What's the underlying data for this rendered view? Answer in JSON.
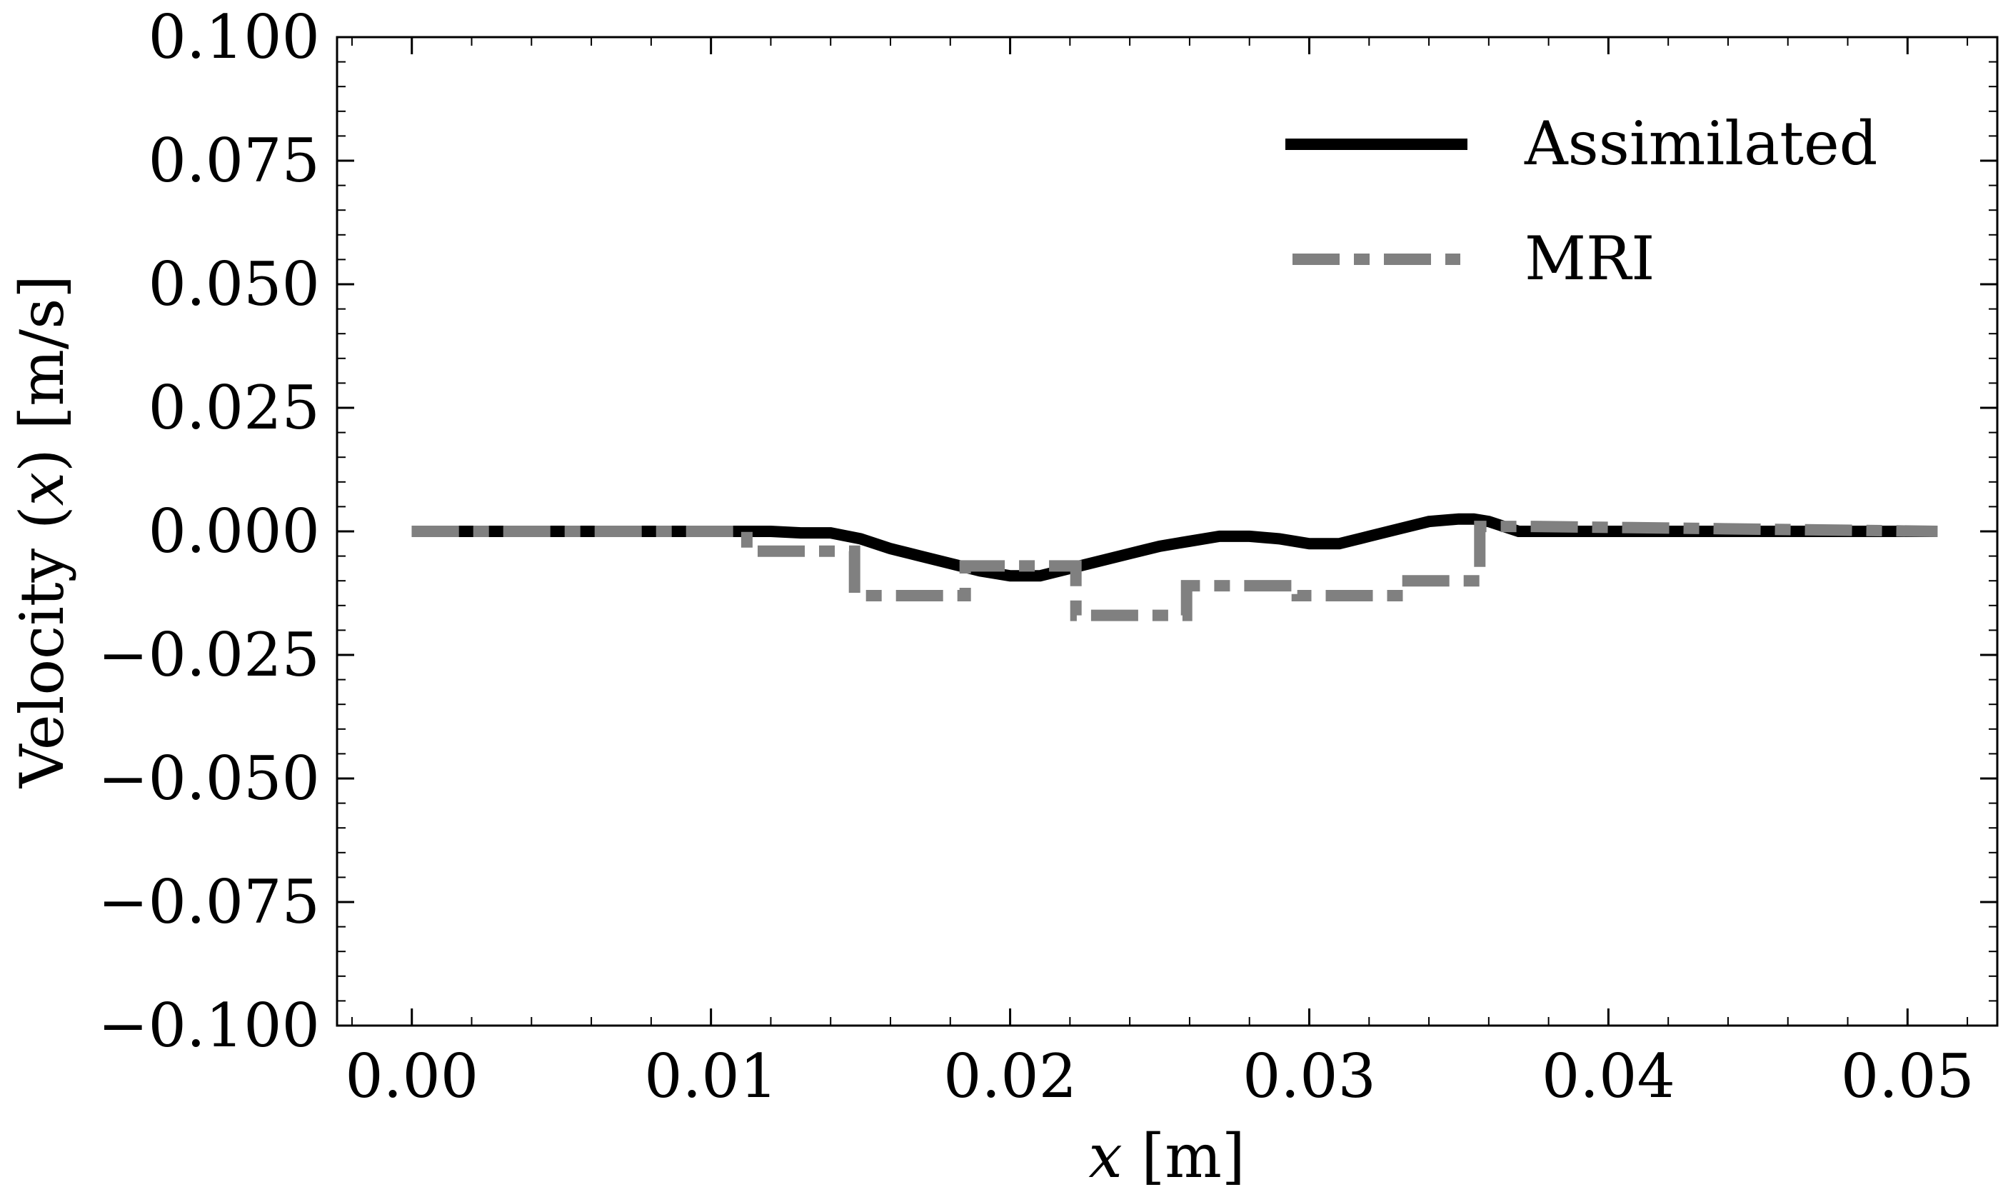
{
  "chart_data": {
    "type": "line",
    "title": "",
    "xlabel_italic": "x",
    "xlabel_rest": " [m]",
    "ylabel_pre": "Velocity (",
    "ylabel_italic": "x",
    "ylabel_post": ") [m/s]",
    "xlim": [
      -0.0025,
      0.053
    ],
    "ylim": [
      -0.1,
      0.1
    ],
    "xticks": [
      0.0,
      0.01,
      0.02,
      0.03,
      0.04,
      0.05
    ],
    "xtick_labels": [
      "0.00",
      "0.01",
      "0.02",
      "0.03",
      "0.04",
      "0.05"
    ],
    "yticks": [
      0.1,
      0.075,
      0.05,
      0.025,
      0.0,
      -0.025,
      -0.05,
      -0.075,
      -0.1
    ],
    "ytick_labels": [
      "0.100",
      "0.075",
      "0.050",
      "0.025",
      "0.000",
      "−0.025",
      "−0.050",
      "−0.075",
      "−0.100"
    ],
    "grid": false,
    "legend_position": "top-right",
    "series": [
      {
        "name": "Assimilated",
        "color": "#000000",
        "style": "solid",
        "x": [
          0.0,
          0.011,
          0.012,
          0.013,
          0.014,
          0.015,
          0.016,
          0.017,
          0.018,
          0.019,
          0.02,
          0.021,
          0.022,
          0.023,
          0.024,
          0.025,
          0.026,
          0.027,
          0.028,
          0.029,
          0.03,
          0.031,
          0.032,
          0.033,
          0.034,
          0.035,
          0.0355,
          0.036,
          0.037,
          0.051
        ],
        "y": [
          0.0,
          0.0,
          0.0,
          -0.0003,
          -0.0003,
          -0.0015,
          -0.0035,
          -0.005,
          -0.0065,
          -0.008,
          -0.009,
          -0.009,
          -0.0075,
          -0.006,
          -0.0045,
          -0.003,
          -0.002,
          -0.001,
          -0.001,
          -0.0015,
          -0.0025,
          -0.0025,
          -0.001,
          0.0005,
          0.002,
          0.0025,
          0.0025,
          0.002,
          0.0,
          0.0
        ]
      },
      {
        "name": "MRI",
        "color": "#808080",
        "style": "dashdot",
        "x": [
          0.0,
          0.0112,
          0.0112,
          0.0148,
          0.0148,
          0.0185,
          0.0185,
          0.0222,
          0.0222,
          0.0259,
          0.0259,
          0.0296,
          0.0296,
          0.0333,
          0.0333,
          0.0357,
          0.0357,
          0.0375,
          0.051
        ],
        "y": [
          0.0,
          0.0,
          -0.004,
          -0.004,
          -0.013,
          -0.013,
          -0.007,
          -0.007,
          -0.017,
          -0.017,
          -0.011,
          -0.011,
          -0.013,
          -0.013,
          -0.01,
          -0.01,
          0.001,
          0.001,
          0.0
        ]
      }
    ]
  }
}
